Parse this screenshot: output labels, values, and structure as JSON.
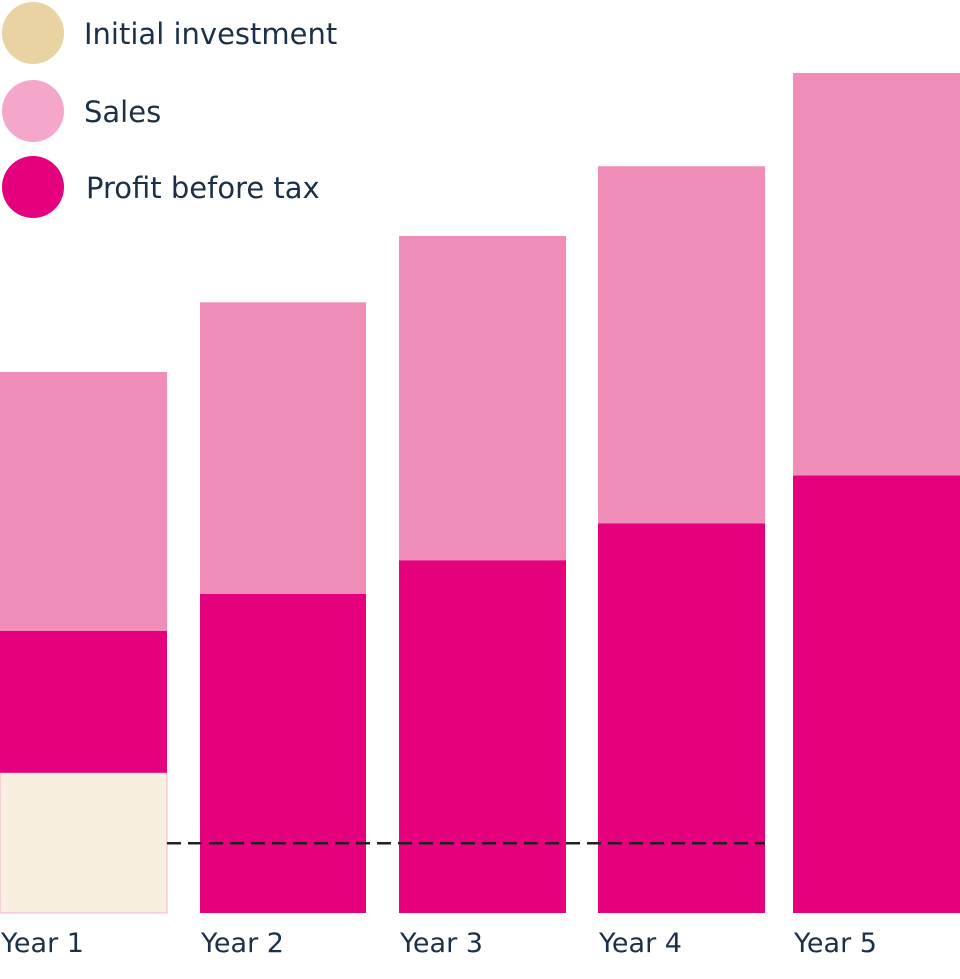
{
  "chart_data": {
    "type": "bar",
    "stacked": true,
    "title": "",
    "xlabel": "",
    "ylabel": "",
    "ylim": [
      0,
      100
    ],
    "grid": false,
    "legend_placement": "top-left",
    "categories": [
      "Year 1",
      "Year 2",
      "Year 3",
      "Year 4",
      "Year 5"
    ],
    "series": [
      {
        "name": "Initial investment",
        "color": "#f8efe1",
        "legend_color": "#e9d3a2",
        "values": [
          16.7,
          0,
          0,
          0,
          0
        ]
      },
      {
        "name": "Profit before tax",
        "color": "#e5007e",
        "legend_color": "#e5007e",
        "values": [
          16.9,
          38.0,
          42.0,
          46.4,
          52.1
        ]
      },
      {
        "name": "Sales",
        "color": "#f08db9",
        "legend_color": "#f5a7cb",
        "values": [
          30.8,
          34.7,
          38.6,
          42.5,
          47.9
        ]
      }
    ],
    "legend_order": [
      "Initial investment",
      "Sales",
      "Profit before tax"
    ],
    "reference_line": {
      "style": "dashed",
      "value": 8.3,
      "color": "#222222"
    },
    "units": "relative (no axis printed)"
  }
}
